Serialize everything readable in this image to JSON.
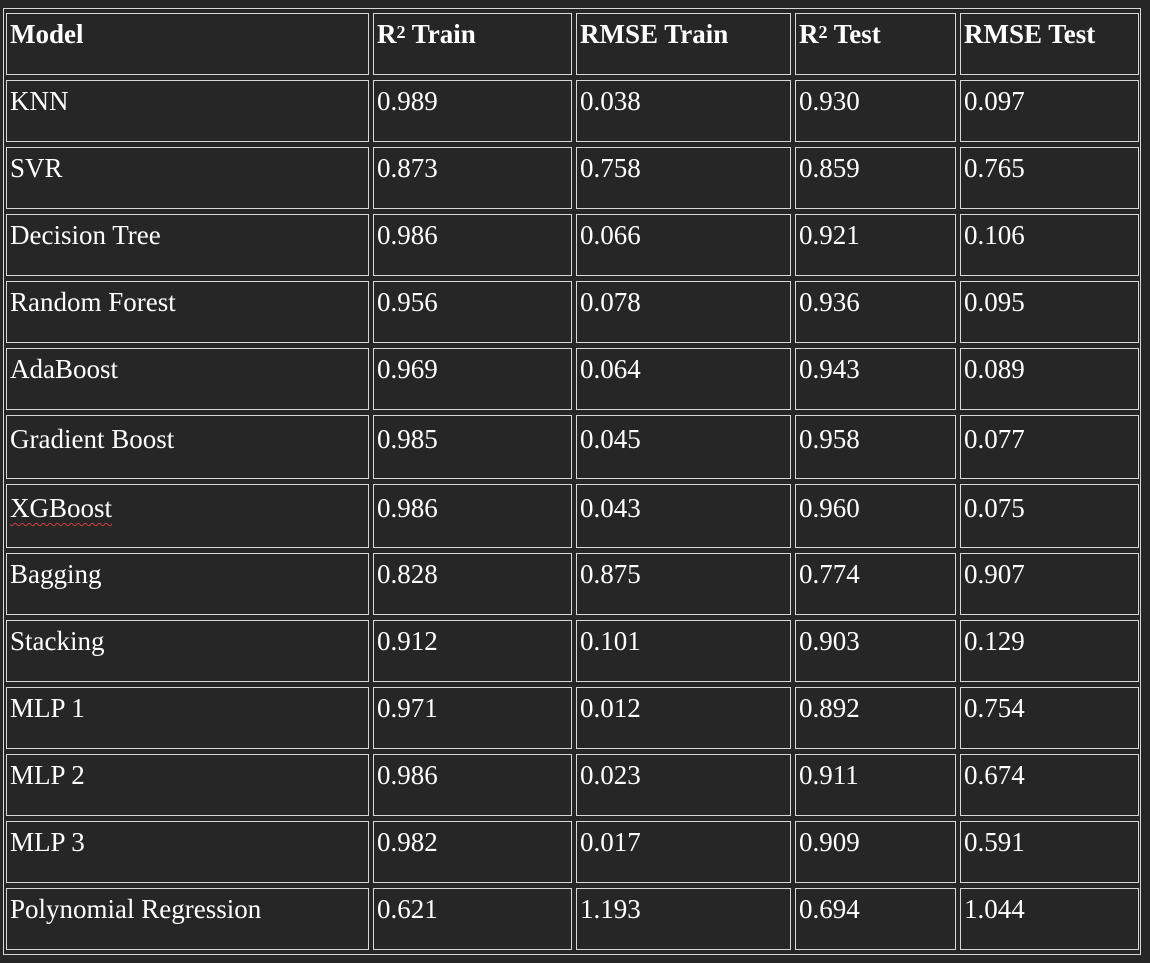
{
  "table": {
    "headers": {
      "model": "Model",
      "r2_train_prefix": "R",
      "r2_train_sup": "2",
      "r2_train_suffix": " Train",
      "rmse_train": "RMSE Train",
      "r2_test_prefix": "R",
      "r2_test_sup": "2",
      "r2_test_suffix": " Test",
      "rmse_test": "RMSE Test"
    },
    "rows": [
      {
        "model": "KNN",
        "r2_train": "0.989",
        "rmse_train": "0.038",
        "r2_test": "0.930",
        "rmse_test": "0.097"
      },
      {
        "model": "SVR",
        "r2_train": "0.873",
        "rmse_train": "0.758",
        "r2_test": "0.859",
        "rmse_test": "0.765"
      },
      {
        "model": "Decision Tree",
        "r2_train": "0.986",
        "rmse_train": "0.066",
        "r2_test": "0.921",
        "rmse_test": "0.106"
      },
      {
        "model": "Random Forest",
        "r2_train": "0.956",
        "rmse_train": "0.078",
        "r2_test": "0.936",
        "rmse_test": "0.095"
      },
      {
        "model": "AdaBoost",
        "r2_train": "0.969",
        "rmse_train": "0.064",
        "r2_test": "0.943",
        "rmse_test": "0.089"
      },
      {
        "model": "Gradient Boost",
        "r2_train": "0.985",
        "rmse_train": "0.045",
        "r2_test": "0.958",
        "rmse_test": "0.077"
      },
      {
        "model": "XGBoost",
        "r2_train": "0.986",
        "rmse_train": "0.043",
        "r2_test": "0.960",
        "rmse_test": "0.075"
      },
      {
        "model": "Bagging",
        "r2_train": "0.828",
        "rmse_train": "0.875",
        "r2_test": "0.774",
        "rmse_test": "0.907"
      },
      {
        "model": "Stacking",
        "r2_train": "0.912",
        "rmse_train": "0.101",
        "r2_test": "0.903",
        "rmse_test": "0.129"
      },
      {
        "model": "MLP 1",
        "r2_train": "0.971",
        "rmse_train": "0.012",
        "r2_test": "0.892",
        "rmse_test": "0.754"
      },
      {
        "model": "MLP 2",
        "r2_train": "0.986",
        "rmse_train": "0.023",
        "r2_test": "0.911",
        "rmse_test": "0.674"
      },
      {
        "model": "MLP 3",
        "r2_train": "0.982",
        "rmse_train": "0.017",
        "r2_test": "0.909",
        "rmse_test": "0.591"
      },
      {
        "model": "Polynomial Regression",
        "r2_train": "0.621",
        "rmse_train": "1.193",
        "r2_test": "0.694",
        "rmse_test": "1.044"
      }
    ]
  },
  "colors": {
    "background": "#262626",
    "border": "#d8d8d8",
    "text": "#ffffff",
    "spellcheck_underline": "#d04040"
  }
}
